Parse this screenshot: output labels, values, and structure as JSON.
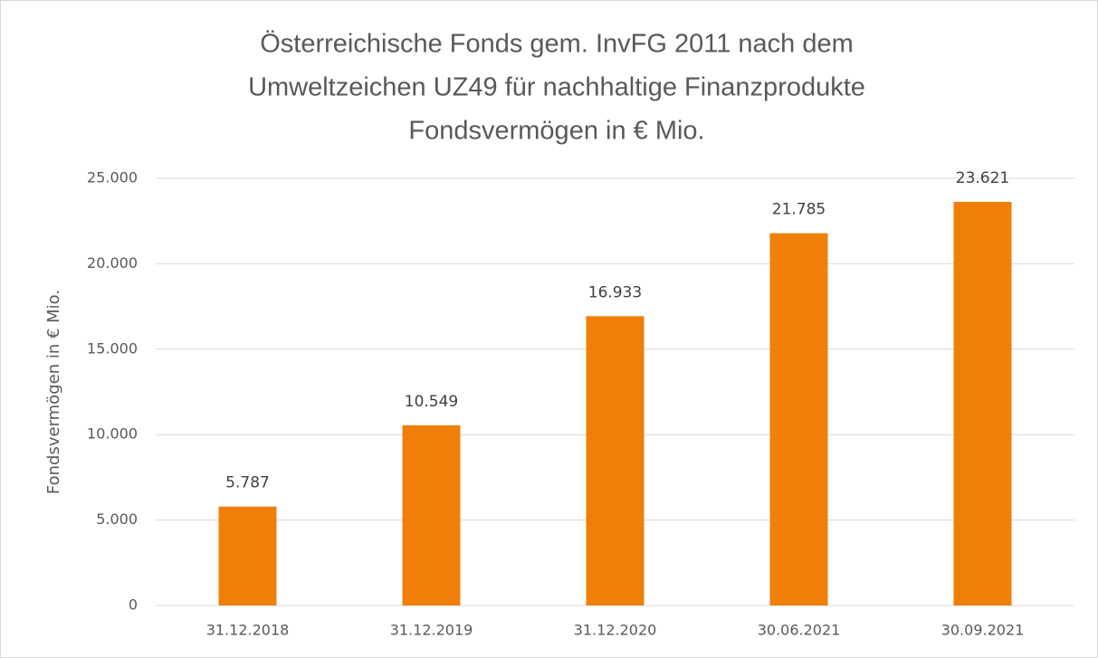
{
  "chart_data": {
    "type": "bar",
    "title": [
      "Österreichische Fonds gem. InvFG 2011 nach dem",
      "Umweltzeichen UZ49 für nachhaltige Finanzprodukte",
      "Fondsvermögen in € Mio."
    ],
    "y_label": "Fondsvermögen in € Mio.",
    "categories": [
      "31.12.2018",
      "31.12.2019",
      "31.12.2020",
      "30.06.2021",
      "30.09.2021"
    ],
    "values": [
      5787,
      10549,
      16933,
      21785,
      23621
    ],
    "value_labels": [
      "5.787",
      "10.549",
      "16.933",
      "21.785",
      "23.621"
    ],
    "color": "#f07f09",
    "ylim": [
      0,
      25000
    ],
    "yticks": [
      0,
      {
        "value": 5000,
        "label": "5.000"
      },
      {
        "value": 10000,
        "label": "10.000"
      },
      {
        "value": 15000,
        "label": "15.000"
      },
      {
        "value": 20000,
        "label": "20.000"
      },
      {
        "value": 25000,
        "label": "25.000"
      }
    ],
    "grid": true
  }
}
